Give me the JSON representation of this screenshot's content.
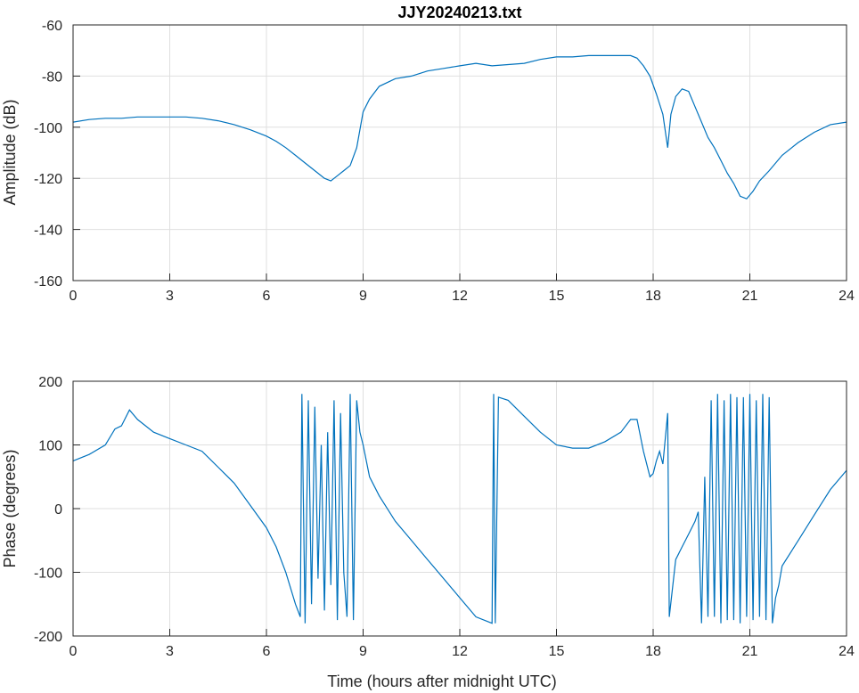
{
  "chart_data": [
    {
      "type": "line",
      "title": "JJY20240213.txt",
      "xlabel": "",
      "ylabel": "Amplitude (dB)",
      "xlim": [
        0,
        24
      ],
      "ylim": [
        -160,
        -60
      ],
      "xticks": [
        "0",
        "3",
        "6",
        "9",
        "12",
        "15",
        "18",
        "21",
        "24"
      ],
      "yticks": [
        "-60",
        "-80",
        "-100",
        "-120",
        "-140",
        "-160"
      ],
      "grid": true,
      "color": "#0072bd",
      "series": [
        {
          "x": [
            0,
            0.5,
            1,
            1.5,
            2,
            2.5,
            3,
            3.5,
            4,
            4.5,
            5,
            5.5,
            6,
            6.3,
            6.6,
            6.9,
            7.2,
            7.5,
            7.8,
            8.0,
            8.2,
            8.4,
            8.6,
            8.8,
            9.0,
            9.2,
            9.5,
            10,
            10.5,
            11,
            11.5,
            12,
            12.5,
            13,
            13.5,
            14,
            14.5,
            15,
            15.5,
            16,
            16.5,
            17,
            17.3,
            17.5,
            17.7,
            17.9,
            18.1,
            18.3,
            18.45,
            18.55,
            18.7,
            18.9,
            19.1,
            19.3,
            19.5,
            19.7,
            19.9,
            20.1,
            20.3,
            20.5,
            20.7,
            20.9,
            21.1,
            21.3,
            21.6,
            22,
            22.5,
            23,
            23.5,
            24
          ],
          "y": [
            -98,
            -97,
            -96.5,
            -96.5,
            -96,
            -96,
            -96,
            -96,
            -96.5,
            -97.5,
            -99,
            -101,
            -103.5,
            -105.5,
            -108,
            -111,
            -114,
            -117,
            -120,
            -121,
            -119,
            -117,
            -115,
            -108,
            -94,
            -89,
            -84,
            -81,
            -80,
            -78,
            -77,
            -76,
            -75,
            -76,
            -75.5,
            -75,
            -73.5,
            -72.5,
            -72.5,
            -72,
            -72,
            -72,
            -72,
            -73,
            -76,
            -80,
            -87,
            -95,
            -108,
            -95,
            -88,
            -85,
            -86,
            -92,
            -98,
            -104,
            -108,
            -113,
            -118,
            -122,
            -127,
            -128,
            -125,
            -121,
            -117,
            -111,
            -106,
            -102,
            -99,
            -98
          ]
        }
      ]
    },
    {
      "type": "line",
      "title": "",
      "xlabel": "Time (hours after midnight UTC)",
      "ylabel": "Phase (degrees)",
      "xlim": [
        0,
        24
      ],
      "ylim": [
        -200,
        200
      ],
      "xticks": [
        "0",
        "3",
        "6",
        "9",
        "12",
        "15",
        "18",
        "21",
        "24"
      ],
      "yticks": [
        "200",
        "100",
        "0",
        "-100",
        "-200"
      ],
      "grid": true,
      "color": "#0072bd",
      "series": [
        {
          "x": [
            0,
            0.5,
            1,
            1.3,
            1.5,
            1.75,
            2,
            2.5,
            3,
            3.5,
            4,
            4.5,
            5,
            5.5,
            6,
            6.3,
            6.6,
            6.9,
            7.05,
            7.1,
            7.2,
            7.3,
            7.4,
            7.5,
            7.6,
            7.7,
            7.8,
            7.9,
            8.0,
            8.1,
            8.2,
            8.3,
            8.4,
            8.5,
            8.6,
            8.7,
            8.8,
            8.9,
            9.0,
            9.2,
            9.5,
            10,
            10.5,
            11,
            11.5,
            12,
            12.5,
            13,
            13.05,
            13.1,
            13.2,
            13.5,
            14,
            14.5,
            15,
            15.5,
            16,
            16.5,
            17,
            17.3,
            17.5,
            17.7,
            17.9,
            18.0,
            18.1,
            18.2,
            18.3,
            18.45,
            18.5,
            18.7,
            18.9,
            19.1,
            19.3,
            19.4,
            19.5,
            19.6,
            19.7,
            19.8,
            19.9,
            20.0,
            20.1,
            20.2,
            20.3,
            20.4,
            20.5,
            20.6,
            20.7,
            20.8,
            20.9,
            21.0,
            21.1,
            21.2,
            21.3,
            21.4,
            21.5,
            21.6,
            21.7,
            21.8,
            21.9,
            22.0,
            22.5,
            23,
            23.5,
            24
          ],
          "y": [
            75,
            85,
            100,
            125,
            130,
            155,
            140,
            120,
            110,
            100,
            90,
            65,
            40,
            5,
            -30,
            -60,
            -100,
            -150,
            -170,
            180,
            -180,
            170,
            -150,
            160,
            -110,
            100,
            -160,
            120,
            -120,
            170,
            -175,
            150,
            -100,
            -170,
            180,
            -175,
            170,
            120,
            100,
            50,
            20,
            -20,
            -50,
            -80,
            -110,
            -140,
            -170,
            -180,
            180,
            -180,
            175,
            170,
            145,
            120,
            100,
            95,
            95,
            105,
            120,
            140,
            140,
            90,
            50,
            55,
            75,
            90,
            70,
            150,
            -170,
            -80,
            -60,
            -40,
            -20,
            -5,
            -180,
            50,
            -170,
            170,
            -170,
            180,
            -180,
            170,
            -175,
            180,
            -175,
            175,
            -180,
            175,
            -170,
            180,
            -175,
            170,
            -170,
            180,
            -175,
            175,
            -180,
            -140,
            -120,
            -90,
            -50,
            -10,
            30,
            60
          ]
        }
      ]
    }
  ]
}
